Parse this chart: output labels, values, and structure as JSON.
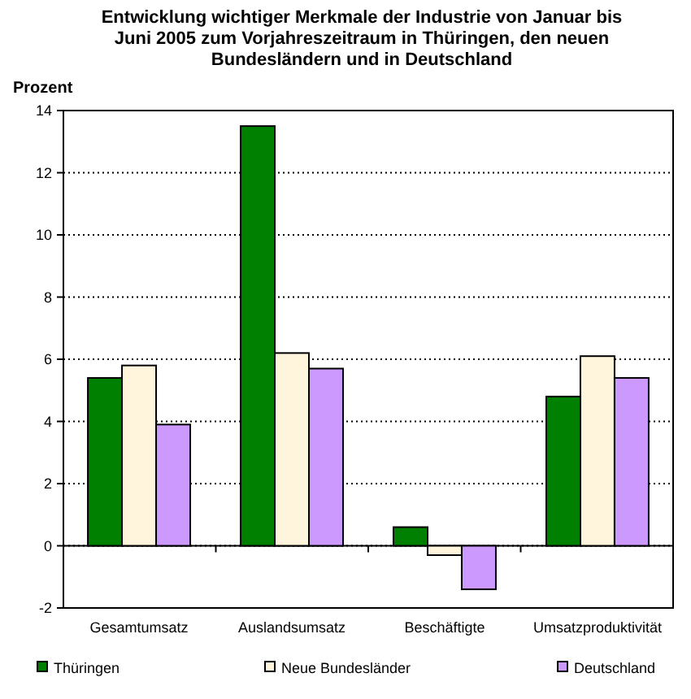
{
  "chart_data": {
    "type": "bar",
    "title": "Entwicklung wichtiger Merkmale der Industrie von Januar bis Juni 2005 zum Vorjahreszeitraum in Thüringen, den neuen Bundesländern und in Deutschland",
    "ylabel": "Prozent",
    "categories": [
      "Gesamtumsatz",
      "Auslandsumsatz",
      "Beschäftigte",
      "Umsatzproduktivität"
    ],
    "series": [
      {
        "name": "Thüringen",
        "color": "#008000",
        "values": [
          5.4,
          13.5,
          0.6,
          4.8
        ]
      },
      {
        "name": "Neue Bundesländer",
        "color": "#fff5dc",
        "values": [
          5.8,
          6.2,
          -0.3,
          6.1
        ]
      },
      {
        "name": "Deutschland",
        "color": "#cc99ff",
        "values": [
          3.9,
          5.7,
          -1.4,
          5.4
        ]
      }
    ],
    "ylim": [
      -2,
      14
    ],
    "yticks": [
      -2,
      0,
      2,
      4,
      6,
      8,
      10,
      12,
      14
    ],
    "grid": "y",
    "legend": "bottom"
  }
}
